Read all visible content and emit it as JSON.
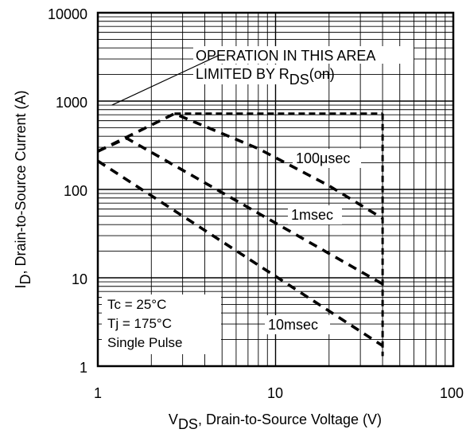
{
  "chart_data": {
    "type": "line",
    "x_scale": "log",
    "y_scale": "log",
    "xlim": [
      1,
      100
    ],
    "ylim": [
      1,
      10000
    ],
    "grid": true,
    "x_ticks": [
      "1",
      "10",
      "100"
    ],
    "y_ticks": [
      "1",
      "10",
      "100",
      "1000",
      "10000"
    ],
    "xlabel": {
      "main": "V",
      "sub": "DS",
      "rest": ", Drain-to-Source Voltage (V)"
    },
    "ylabel": {
      "main": "I",
      "sub": "D",
      "rest": ",  Drain-to-Source Current (A)"
    },
    "series": [
      {
        "name": "100μsec",
        "x": [
          1,
          2.7,
          8,
          20,
          40
        ],
        "y": [
          270,
          720,
          290,
          110,
          47
        ]
      },
      {
        "name": "1msec",
        "x": [
          1,
          1.45,
          40
        ],
        "y": [
          270,
          380,
          8.5
        ]
      },
      {
        "name": "10msec",
        "x": [
          1,
          40
        ],
        "y": [
          210,
          1.7
        ]
      }
    ],
    "limits": [
      {
        "kind": "current-limit",
        "x": [
          2.7,
          40
        ],
        "y": [
          720,
          720
        ]
      },
      {
        "kind": "voltage-limit",
        "x": [
          40,
          40
        ],
        "y": [
          720,
          1.3
        ]
      },
      {
        "kind": "rds-on-pointer",
        "x": [
          1.2,
          4.8
        ],
        "y": [
          900,
          3300
        ]
      }
    ],
    "annotations": {
      "rds_line1": "OPERATION IN THIS AREA",
      "rds_line2_main": "LIMITED BY R",
      "rds_line2_sub": "DS",
      "rds_line2_rest": "(on)",
      "cond_tc": "Tc = 25°C",
      "cond_tj": "Tj = 175°C",
      "cond_pulse": "Single Pulse"
    }
  }
}
